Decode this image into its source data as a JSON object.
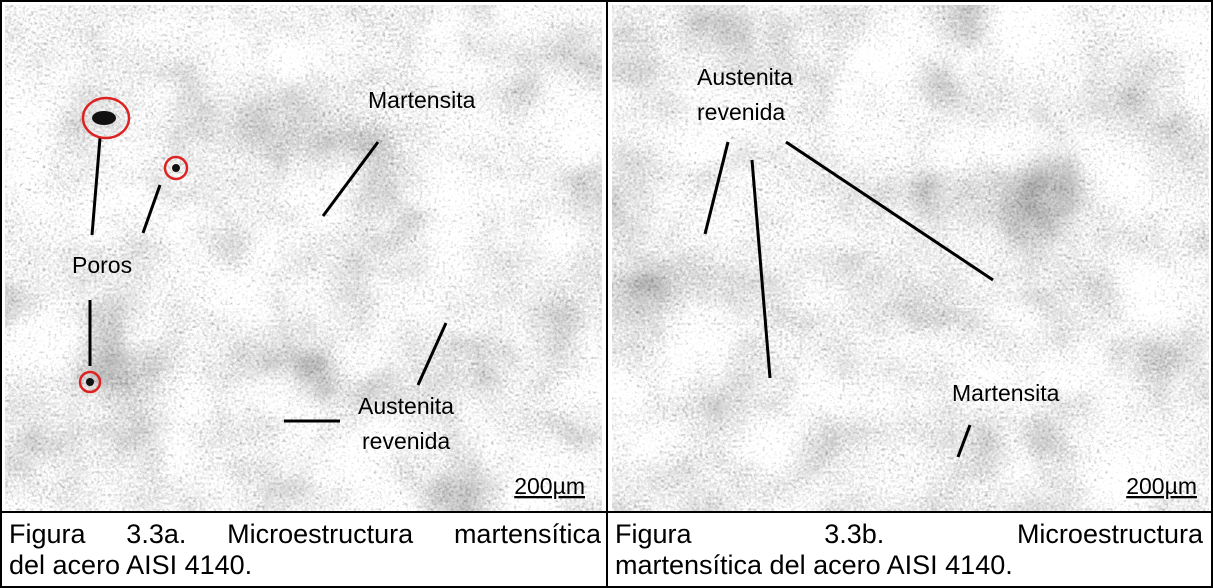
{
  "panels": [
    {
      "labels": {
        "martensita": "Martensita",
        "poros": "Poros",
        "austenita_1": "Austenita",
        "austenita_2": "revenida"
      },
      "scale": "200µm",
      "caption": [
        "Figura 3.3a. Microestructura martensítica",
        "del acero AISI 4140."
      ]
    },
    {
      "labels": {
        "austenita_1": "Austenita",
        "austenita_2": "revenida",
        "martensita": "Martensita"
      },
      "scale": "200µm",
      "caption": [
        "Figura 3.3b. Microestructura",
        "martensítica del acero AISI 4140."
      ]
    }
  ]
}
